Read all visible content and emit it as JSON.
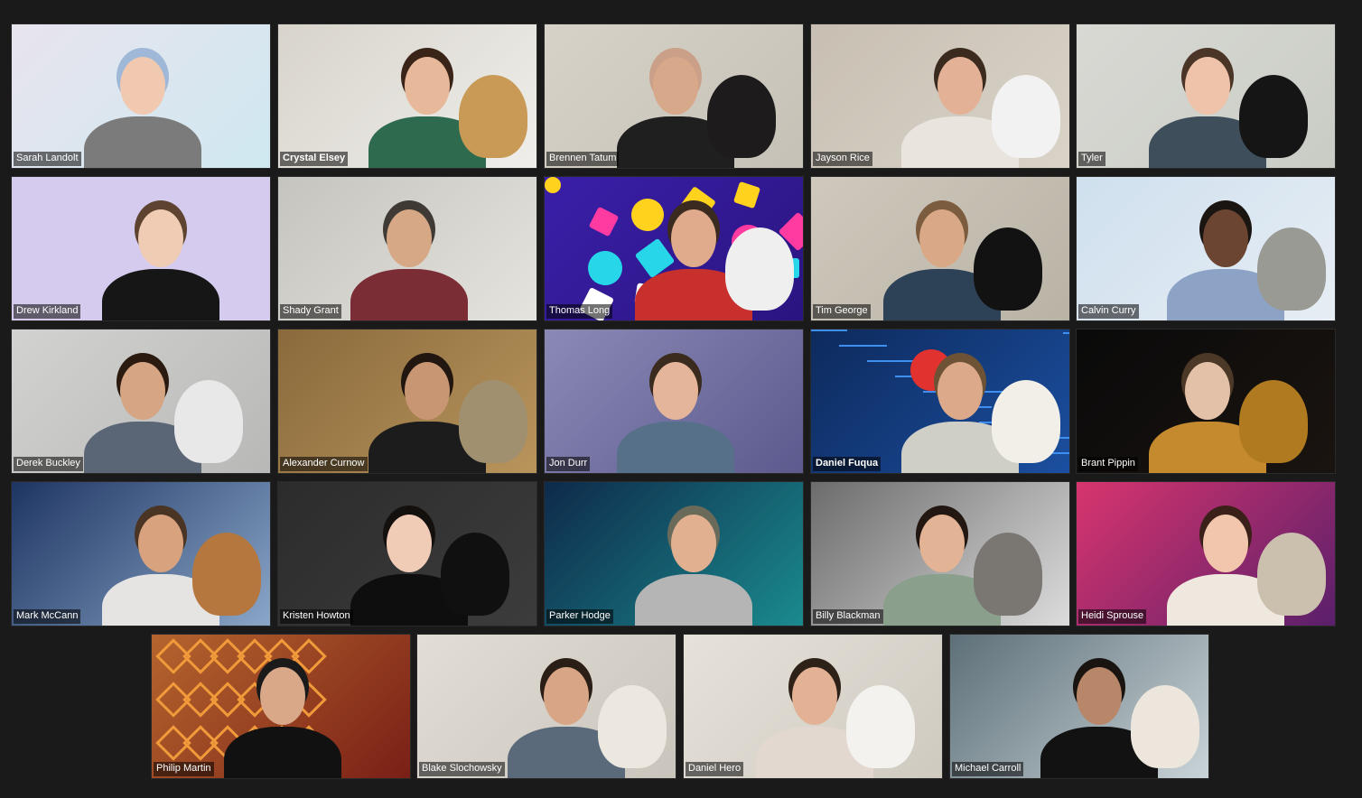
{
  "meeting": {
    "view": "gallery",
    "participants": [
      {
        "name": "Sarah Landolt",
        "bg": "#e8e4ee",
        "bg2": "#cfe8f0",
        "skin": "#f0c9b0",
        "shirt": "#7b7b7b",
        "hair": "#9fb8d8",
        "pet": null
      },
      {
        "name": "Crystal Elsey",
        "bg": "#d8d4cc",
        "bg2": "#efeeea",
        "skin": "#e8b89a",
        "shirt": "#2e6b4e",
        "hair": "#3a2418",
        "pet": "#c89a55",
        "bold": true
      },
      {
        "name": "Brennen Tatum",
        "bg": "#d7d2c8",
        "bg2": "#c6c1b6",
        "skin": "#d8a88a",
        "shirt": "#1f1f1f",
        "hair": "#caa088",
        "pet": "#1d1b1b"
      },
      {
        "name": "Jayson Rice",
        "bg": "#c8bfb2",
        "bg2": "#d9d3c8",
        "skin": "#e3b296",
        "shirt": "#e9e4de",
        "hair": "#3b2a1e",
        "pet": "#f2f2f2"
      },
      {
        "name": "Tyler",
        "bg": "#d9d9d4",
        "bg2": "#c9ccc5",
        "skin": "#eec3aa",
        "shirt": "#3e4e5a",
        "hair": "#4a3526",
        "pet": "#151515"
      },
      {
        "name": "Drew Kirkland",
        "bg": "#d5cbee",
        "bg2": "#d5cbee",
        "skin": "#efccb3",
        "shirt": "#161616",
        "hair": "#5d4330",
        "pet": null
      },
      {
        "name": "Shady Grant",
        "bg": "#c6c4be",
        "bg2": "#e5e3de",
        "skin": "#d6a886",
        "shirt": "#7a2d35",
        "hair": "#3f3a34",
        "pet": null
      },
      {
        "name": "Thomas Long",
        "bg": "#3a1fa8",
        "bg2": "#2a1480",
        "skin": "#e0aa8c",
        "shirt": "#c8302e",
        "hair": "#3a2a20",
        "pet": "#efefef"
      },
      {
        "name": "Tim George",
        "bg": "#cfc9bd",
        "bg2": "#b9b3a6",
        "skin": "#d9a987",
        "shirt": "#2d4257",
        "hair": "#7c5c3f",
        "pet": "#121212"
      },
      {
        "name": "Calvin Curry",
        "bg": "#cfe0ee",
        "bg2": "#e6edf4",
        "skin": "#6b4531",
        "shirt": "#8ca3c6",
        "hair": "#1b1512",
        "pet": "#9a9a94"
      },
      {
        "name": "Derek Buckley",
        "bg": "#d2d2d0",
        "bg2": "#b8b8b6",
        "skin": "#d6a584",
        "shirt": "#5a6576",
        "hair": "#2b1a10",
        "pet": "#e8e8e8"
      },
      {
        "name": "Alexander Curnow",
        "bg": "#8a6a3c",
        "bg2": "#b9955c",
        "skin": "#c89672",
        "shirt": "#1c1c1c",
        "hair": "#221710",
        "pet": "#a09070"
      },
      {
        "name": "Jon Durr",
        "bg": "#8b89b5",
        "bg2": "#5c5a8e",
        "skin": "#e4b59a",
        "shirt": "#56708a",
        "hair": "#3b2b1e",
        "pet": null
      },
      {
        "name": "Daniel Fuqua",
        "bg": "#0d2a5c",
        "bg2": "#1b4fa0",
        "skin": "#dcaa8a",
        "shirt": "#cfcfc8",
        "hair": "#6d5236",
        "pet": "#f1efe8",
        "bold": true
      },
      {
        "name": "Brant Pippin",
        "bg": "#0a0a0a",
        "bg2": "#1a1410",
        "skin": "#e3c0a8",
        "shirt": "#c58a2e",
        "hair": "#4c3826",
        "pet": "#b07a20"
      },
      {
        "name": "Mark McCann",
        "bg": "#1e3562",
        "bg2": "#8aa6c8",
        "skin": "#d8a27e",
        "shirt": "#e6e4e2",
        "hair": "#4a3424",
        "pet": "#b5773d"
      },
      {
        "name": "Kristen Howton",
        "bg": "#2c2c2c",
        "bg2": "#3c3c3c",
        "skin": "#f0cbb6",
        "shirt": "#0e0e0e",
        "hair": "#14100e",
        "pet": "#101010"
      },
      {
        "name": "Parker Hodge",
        "bg": "#0e2a4a",
        "bg2": "#1a8a8e",
        "skin": "#e0b090",
        "shirt": "#b5b5b5",
        "hair": "#6a6a5a",
        "pet": null
      },
      {
        "name": "Billy Blackman",
        "bg": "#6c6c6c",
        "bg2": "#dcdcdc",
        "skin": "#e2b394",
        "shirt": "#8aa08c",
        "hair": "#231712",
        "pet": "#7a7672"
      },
      {
        "name": "Heidi Sprouse",
        "bg": "#d8356e",
        "bg2": "#5a1f6b",
        "skin": "#f1c6ad",
        "shirt": "#efe8de",
        "hair": "#3b2019",
        "pet": "#cbbfae"
      },
      {
        "name": "Philip Martin",
        "bg": "#b5652e",
        "bg2": "#7a1f16",
        "skin": "#d8a889",
        "shirt": "#111111",
        "hair": "#1a1a1a",
        "pet": null
      },
      {
        "name": "Blake Slochowsky",
        "bg": "#e2ded6",
        "bg2": "#c9c5bc",
        "skin": "#d8a686",
        "shirt": "#5a6a7a",
        "hair": "#2a1e16",
        "pet": "#ece8e0"
      },
      {
        "name": "Daniel Hero",
        "bg": "#e6e2da",
        "bg2": "#cfcac0",
        "skin": "#e3b294",
        "shirt": "#e2d8d0",
        "hair": "#2e2118",
        "pet": "#f4f2ee"
      },
      {
        "name": "Michael Carroll",
        "bg": "#5d6f78",
        "bg2": "#c9d4d8",
        "skin": "#b8876a",
        "shirt": "#121212",
        "hair": "#1a1410",
        "pet": "#ede6dc"
      }
    ]
  }
}
